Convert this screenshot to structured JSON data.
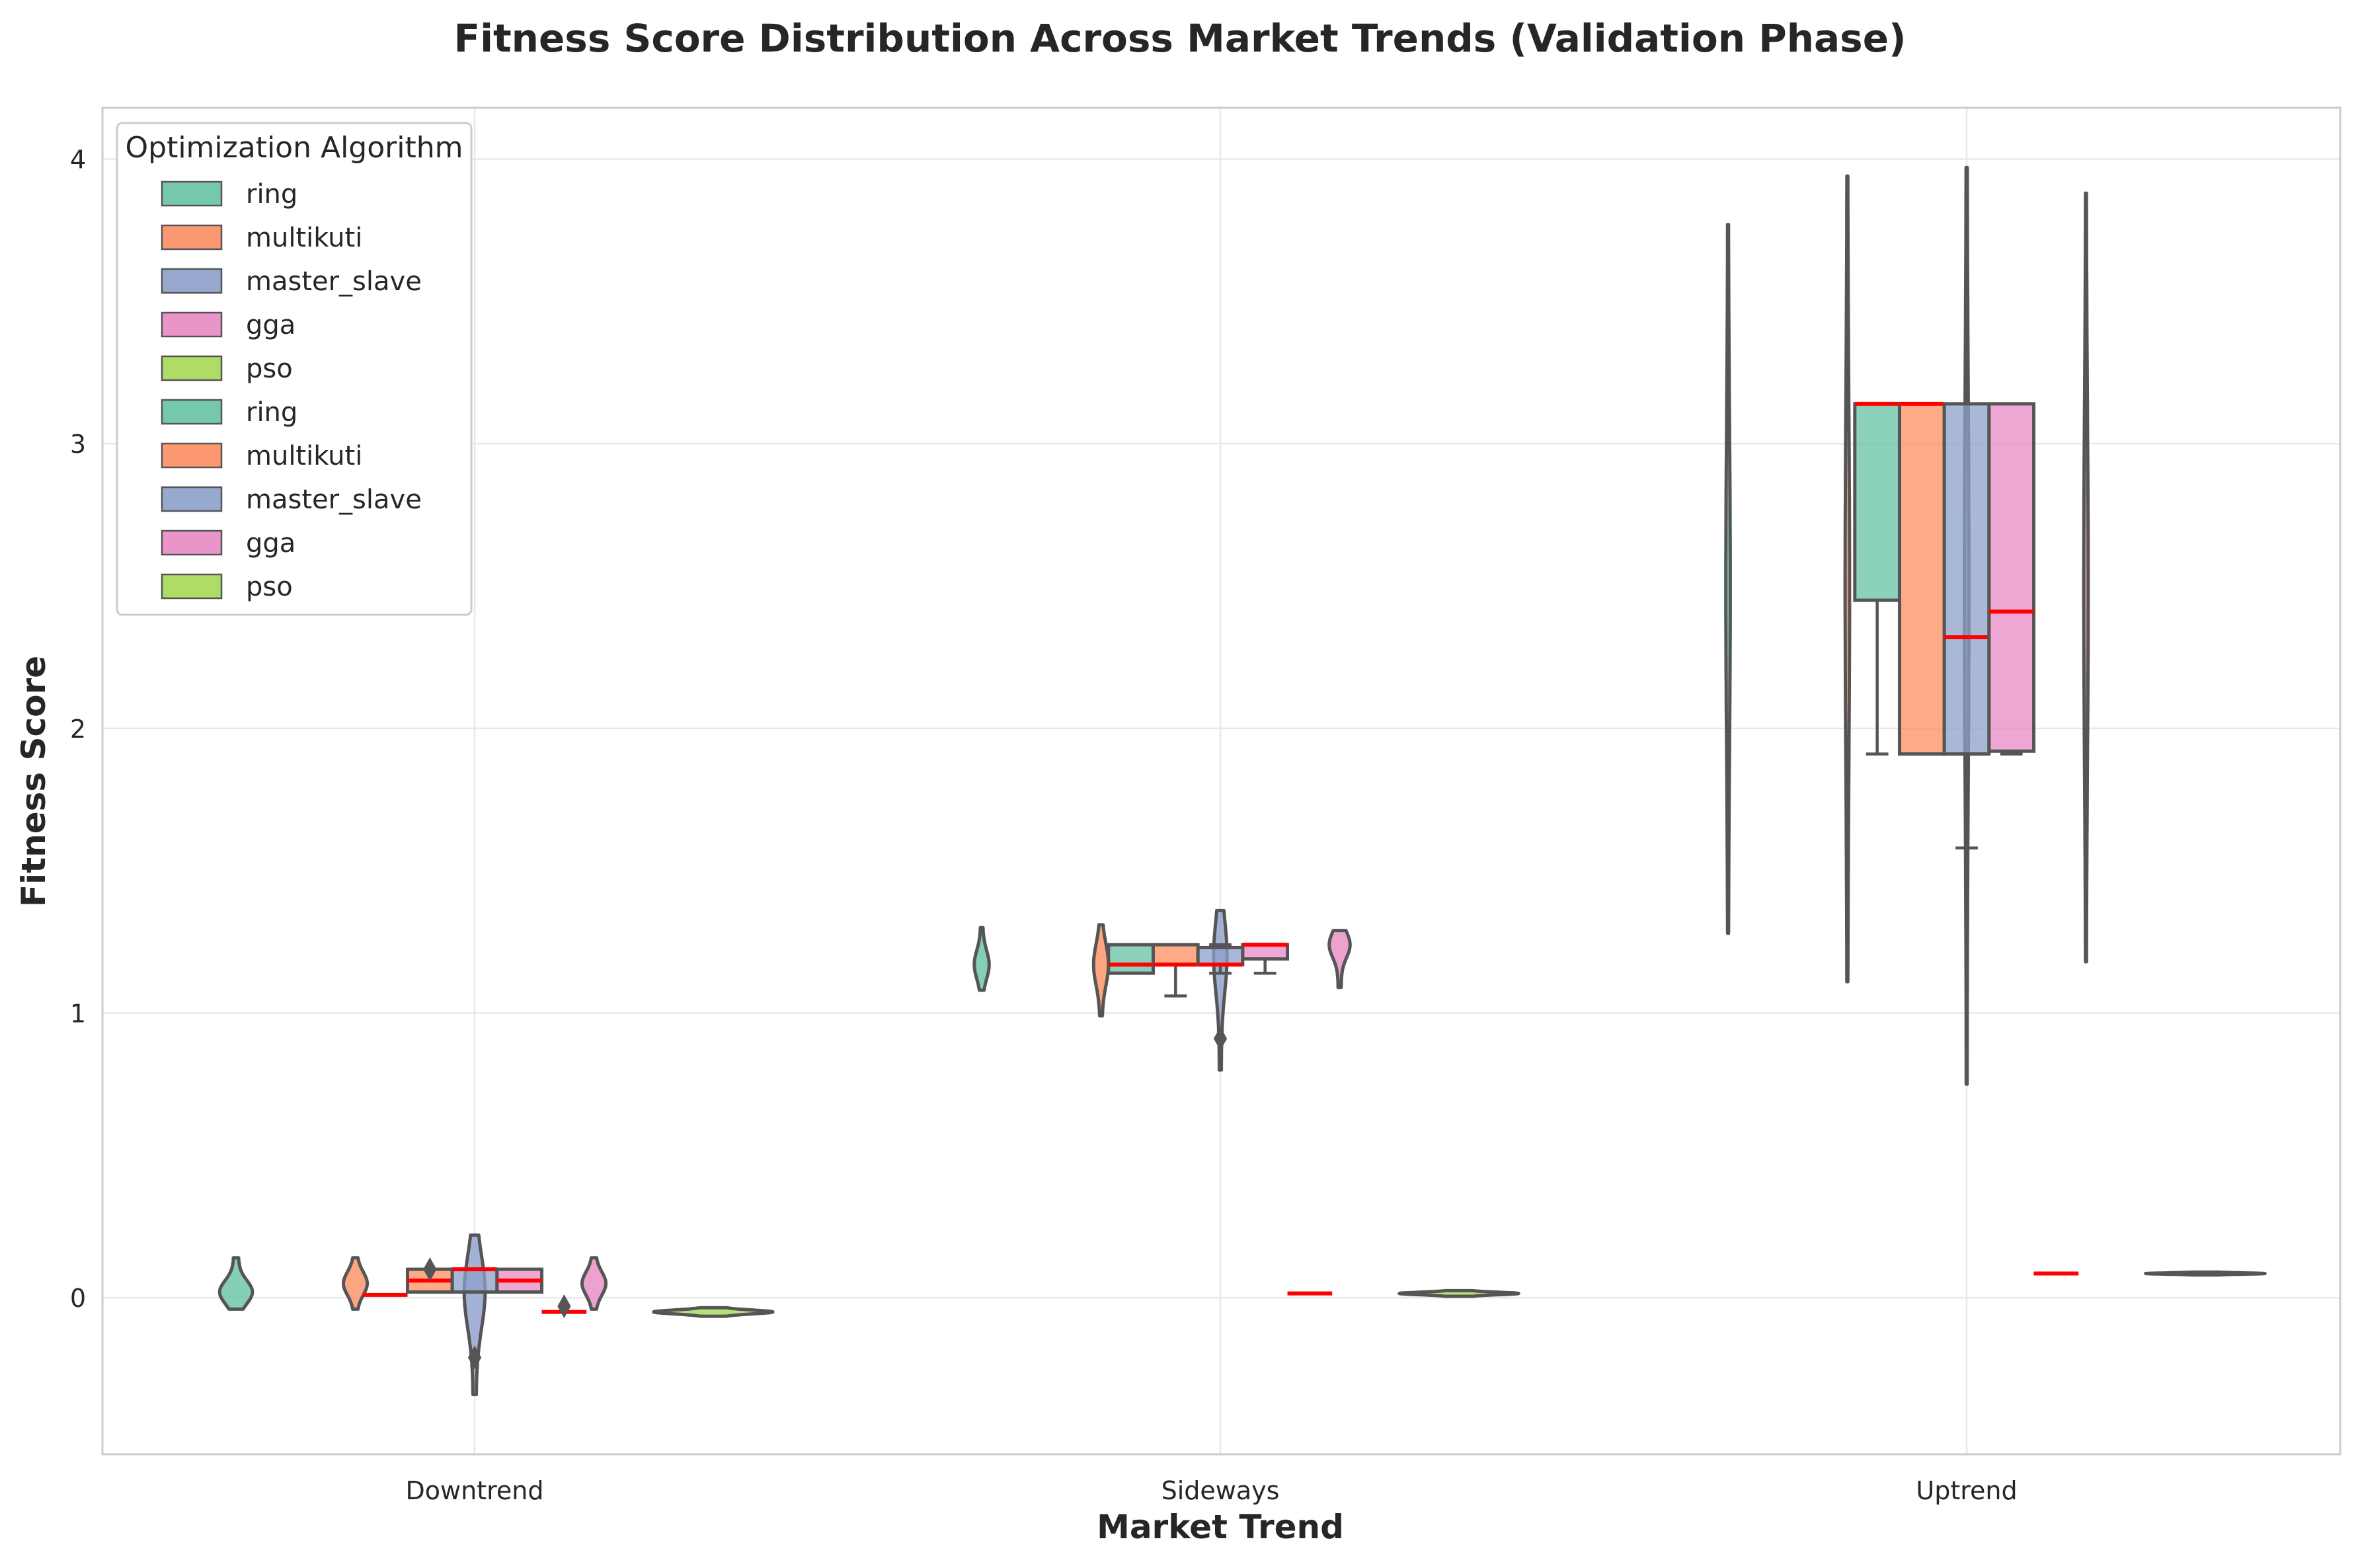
{
  "chart_data": {
    "type": "box",
    "title": "Fitness Score Distribution Across Market Trends (Validation Phase)",
    "xlabel": "Market Trend",
    "ylabel": "Fitness Score",
    "categories": [
      "Downtrend",
      "Sideways",
      "Uptrend"
    ],
    "ylim": [
      -0.55,
      4.18
    ],
    "yticks": [
      0,
      1,
      2,
      3,
      4
    ],
    "grid": true,
    "legend": {
      "title": "Optimization Algorithm",
      "placement": "top-left",
      "entries": [
        "ring",
        "multikuti",
        "master_slave",
        "gga",
        "pso",
        "ring",
        "multikuti",
        "master_slave",
        "gga",
        "pso"
      ]
    },
    "colors": {
      "ring": "#66c2a5",
      "multikuti": "#fc8d62",
      "master_slave": "#8da0cb",
      "gga": "#e78ac3",
      "pso": "#a6d854",
      "median": "#ff0000",
      "outline": "#555555",
      "grid": "#e8e8e8",
      "frame": "#cccccc"
    },
    "violins": [
      {
        "name": "ring",
        "category": "Downtrend",
        "x": -0.32,
        "range": [
          -0.04,
          0.14
        ],
        "peak": 0.02,
        "halfwidth": 0.022
      },
      {
        "name": "multikuti",
        "category": "Downtrend",
        "x": -0.16,
        "range": [
          -0.04,
          0.14
        ],
        "peak": 0.05,
        "halfwidth": 0.016
      },
      {
        "name": "master_slave",
        "category": "Downtrend",
        "x": 0.0,
        "range": [
          -0.34,
          0.22
        ],
        "peak": 0.02,
        "halfwidth": 0.014
      },
      {
        "name": "gga",
        "category": "Downtrend",
        "x": 0.16,
        "range": [
          -0.04,
          0.14
        ],
        "peak": 0.05,
        "halfwidth": 0.016
      },
      {
        "name": "pso",
        "category": "Downtrend",
        "x": 0.32,
        "range": [
          -0.065,
          -0.035
        ],
        "peak": -0.05,
        "halfwidth": 0.08
      },
      {
        "name": "ring",
        "category": "Sideways",
        "x": -0.32,
        "range": [
          1.08,
          1.3
        ],
        "peak": 1.17,
        "halfwidth": 0.01
      },
      {
        "name": "multikuti",
        "category": "Sideways",
        "x": -0.16,
        "range": [
          0.99,
          1.31
        ],
        "peak": 1.17,
        "halfwidth": 0.01
      },
      {
        "name": "master_slave",
        "category": "Sideways",
        "x": 0.0,
        "range": [
          0.8,
          1.36
        ],
        "peak": 1.2,
        "halfwidth": 0.009
      },
      {
        "name": "gga",
        "category": "Sideways",
        "x": 0.16,
        "range": [
          1.09,
          1.29
        ],
        "peak": 1.24,
        "halfwidth": 0.014
      },
      {
        "name": "pso",
        "category": "Sideways",
        "x": 0.32,
        "range": [
          0.005,
          0.025
        ],
        "peak": 0.015,
        "halfwidth": 0.08
      },
      {
        "name": "ring",
        "category": "Uptrend",
        "x": -0.32,
        "range": [
          1.28,
          3.77
        ],
        "peak": 2.5,
        "halfwidth": 0.003
      },
      {
        "name": "multikuti",
        "category": "Uptrend",
        "x": -0.16,
        "range": [
          1.11,
          3.94
        ],
        "peak": 2.5,
        "halfwidth": 0.003
      },
      {
        "name": "master_slave",
        "category": "Uptrend",
        "x": 0.0,
        "range": [
          0.75,
          3.97
        ],
        "peak": 2.5,
        "halfwidth": 0.003
      },
      {
        "name": "gga",
        "category": "Uptrend",
        "x": 0.16,
        "range": [
          1.18,
          3.88
        ],
        "peak": 2.5,
        "halfwidth": 0.003
      },
      {
        "name": "pso",
        "category": "Uptrend",
        "x": 0.32,
        "range": [
          0.08,
          0.09
        ],
        "peak": 0.085,
        "halfwidth": 0.08
      }
    ],
    "boxes": [
      {
        "name": "ring",
        "category": "Downtrend",
        "x": -0.12,
        "q1": 0.01,
        "median": 0.01,
        "q3": 0.01,
        "whisker_low": 0.01,
        "whisker_high": 0.01,
        "outliers": []
      },
      {
        "name": "multikuti",
        "category": "Downtrend",
        "x": -0.06,
        "q1": 0.02,
        "median": 0.06,
        "q3": 0.1,
        "whisker_low": 0.02,
        "whisker_high": 0.1,
        "outliers": [
          0.1
        ]
      },
      {
        "name": "master_slave",
        "category": "Downtrend",
        "x": 0.0,
        "q1": 0.02,
        "median": 0.1,
        "q3": 0.1,
        "whisker_low": 0.02,
        "whisker_high": 0.1,
        "outliers": [
          -0.21
        ]
      },
      {
        "name": "gga",
        "category": "Downtrend",
        "x": 0.06,
        "q1": 0.02,
        "median": 0.06,
        "q3": 0.1,
        "whisker_low": 0.02,
        "whisker_high": 0.1,
        "outliers": []
      },
      {
        "name": "pso",
        "category": "Downtrend",
        "x": 0.12,
        "q1": -0.05,
        "median": -0.05,
        "q3": -0.05,
        "whisker_low": -0.05,
        "whisker_high": -0.05,
        "outliers": [
          -0.03
        ]
      },
      {
        "name": "ring",
        "category": "Sideways",
        "x": -0.12,
        "q1": 1.14,
        "median": 1.17,
        "q3": 1.24,
        "whisker_low": 1.14,
        "whisker_high": 1.24,
        "outliers": []
      },
      {
        "name": "multikuti",
        "category": "Sideways",
        "x": -0.06,
        "q1": 1.17,
        "median": 1.17,
        "q3": 1.24,
        "whisker_low": 1.06,
        "whisker_high": 1.24,
        "outliers": []
      },
      {
        "name": "master_slave",
        "category": "Sideways",
        "x": 0.0,
        "q1": 1.17,
        "median": 1.17,
        "q3": 1.23,
        "whisker_low": 1.14,
        "whisker_high": 1.24,
        "outliers": [
          0.91
        ]
      },
      {
        "name": "gga",
        "category": "Sideways",
        "x": 0.06,
        "q1": 1.19,
        "median": 1.24,
        "q3": 1.24,
        "whisker_low": 1.14,
        "whisker_high": 1.24,
        "outliers": []
      },
      {
        "name": "pso",
        "category": "Sideways",
        "x": 0.12,
        "q1": 0.015,
        "median": 0.015,
        "q3": 0.015,
        "whisker_low": 0.015,
        "whisker_high": 0.015,
        "outliers": []
      },
      {
        "name": "ring",
        "category": "Uptrend",
        "x": -0.12,
        "q1": 2.45,
        "median": 3.14,
        "q3": 3.14,
        "whisker_low": 1.91,
        "whisker_high": 3.14,
        "outliers": []
      },
      {
        "name": "multikuti",
        "category": "Uptrend",
        "x": -0.06,
        "q1": 1.91,
        "median": 3.14,
        "q3": 3.14,
        "whisker_low": 1.91,
        "whisker_high": 3.14,
        "outliers": []
      },
      {
        "name": "master_slave",
        "category": "Uptrend",
        "x": 0.0,
        "q1": 1.91,
        "median": 2.32,
        "q3": 3.14,
        "whisker_low": 1.58,
        "whisker_high": 3.14,
        "outliers": []
      },
      {
        "name": "gga",
        "category": "Uptrend",
        "x": 0.06,
        "q1": 1.92,
        "median": 2.41,
        "q3": 3.14,
        "whisker_low": 1.91,
        "whisker_high": 3.14,
        "outliers": []
      },
      {
        "name": "pso",
        "category": "Uptrend",
        "x": 0.12,
        "q1": 0.085,
        "median": 0.085,
        "q3": 0.085,
        "whisker_low": 0.085,
        "whisker_high": 0.085,
        "outliers": []
      }
    ]
  }
}
